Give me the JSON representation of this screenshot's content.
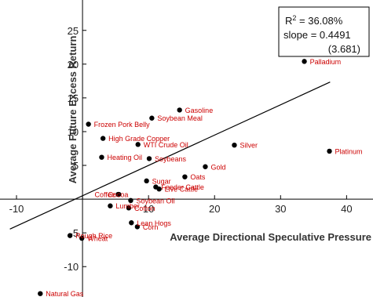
{
  "chart_data": {
    "type": "scatter",
    "xlabel": "Average Directional Speculative Pressure",
    "ylabel": "Average Future Excess Return",
    "xlim": [
      -12.5,
      44
    ],
    "ylim": [
      -14.5,
      29.5
    ],
    "x_ticks": [
      -10,
      0,
      10,
      20,
      30,
      40
    ],
    "y_ticks": [
      -10,
      -5,
      5,
      10,
      15,
      20,
      25
    ],
    "x_tick_labels": [
      "-10",
      "",
      "10",
      "20",
      "30",
      "40"
    ],
    "y_tick_labels": [
      "-10",
      "-5",
      "5",
      "10",
      "15",
      "20",
      "25"
    ],
    "point_color": "#000000",
    "label_color": "#cc0000",
    "fit_line": {
      "slope": 0.4491,
      "intercept": 0.5,
      "x_range": [
        -11,
        37.5
      ],
      "color": "#000000"
    },
    "stats": {
      "r2_prefix": "R",
      "r2_superscript": "2",
      "r2_value": " = 36.08%",
      "slope_text": "slope = 0.4491",
      "tstat_text": "(3.681)"
    },
    "points": [
      {
        "name": "Palladium",
        "x": 33.6,
        "y": 20.4
      },
      {
        "name": "Gasoline",
        "x": 14.7,
        "y": 13.2
      },
      {
        "name": "Soybean Meal",
        "x": 10.5,
        "y": 12.0
      },
      {
        "name": "Frozen Pork Belly",
        "x": 0.9,
        "y": 11.1
      },
      {
        "name": "High Grade Copper",
        "x": 3.1,
        "y": 9.0
      },
      {
        "name": "WTI Crude Oil",
        "x": 8.4,
        "y": 8.1
      },
      {
        "name": "Silver",
        "x": 23.0,
        "y": 8.0
      },
      {
        "name": "Platinum",
        "x": 37.4,
        "y": 7.1
      },
      {
        "name": "Heating Oil",
        "x": 2.9,
        "y": 6.2
      },
      {
        "name": "Soybeans",
        "x": 10.1,
        "y": 6.0
      },
      {
        "name": "Gold",
        "x": 18.6,
        "y": 4.8
      },
      {
        "name": "Oats",
        "x": 15.5,
        "y": 3.3
      },
      {
        "name": "Sugar",
        "x": 9.7,
        "y": 2.7
      },
      {
        "name": "Feeder Cattle",
        "x": 11.1,
        "y": 1.8
      },
      {
        "name": "Live Cattle",
        "x": 11.6,
        "y": 1.5
      },
      {
        "name": "Cocoa",
        "x": 5.5,
        "y": 0.7
      },
      {
        "name": "Coffee",
        "x": 5.4,
        "y": 0.7
      },
      {
        "name": "Soybean Oil",
        "x": 7.3,
        "y": -0.2
      },
      {
        "name": "Lumber",
        "x": 4.2,
        "y": -1.0
      },
      {
        "name": "Cotton",
        "x": 7.0,
        "y": -1.3
      },
      {
        "name": "Lean Hogs",
        "x": 7.4,
        "y": -3.5
      },
      {
        "name": "Corn",
        "x": 8.3,
        "y": -4.1
      },
      {
        "name": "Rough Rice",
        "x": -1.9,
        "y": -5.4
      },
      {
        "name": "Wheat",
        "x": -0.1,
        "y": -5.8
      },
      {
        "name": "Natural Gas",
        "x": -6.4,
        "y": -14.0
      }
    ]
  }
}
